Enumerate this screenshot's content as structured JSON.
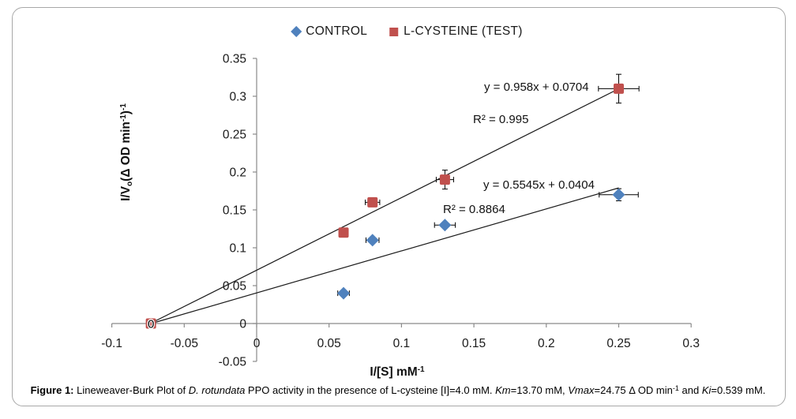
{
  "figure": {
    "border_color": "#a8a8a8",
    "background_color": "#ffffff",
    "axis_color": "#8a8a8a",
    "text_color": "#1a1a1a"
  },
  "chart_data": {
    "type": "scatter",
    "title": "",
    "xlabel": "I/[S] mM-1",
    "ylabel": "I/Vo(Δ OD min-1)-1",
    "xlabel_segments": [
      {
        "t": "I/[S] mM"
      },
      {
        "t": "-1",
        "sup": true
      }
    ],
    "ylabel_segments": [
      {
        "t": "I/V"
      },
      {
        "t": "o",
        "sub": true
      },
      {
        "t": "(Δ OD min"
      },
      {
        "t": "-1",
        "sup": true
      },
      {
        "t": ")"
      },
      {
        "t": "-1",
        "sup": true
      }
    ],
    "xlim": [
      -0.1,
      0.3
    ],
    "ylim": [
      -0.05,
      0.35
    ],
    "grid": false,
    "legend_position": "top-center",
    "x_ticks": [
      {
        "value": -0.1,
        "label": "-0.1"
      },
      {
        "value": -0.05,
        "label": "-0.05"
      },
      {
        "value": 0,
        "label": "0"
      },
      {
        "value": 0.05,
        "label": "0.05"
      },
      {
        "value": 0.1,
        "label": "0.1"
      },
      {
        "value": 0.15,
        "label": "0.15"
      },
      {
        "value": 0.2,
        "label": "0.2"
      },
      {
        "value": 0.25,
        "label": "0.25"
      },
      {
        "value": 0.3,
        "label": "0.3"
      }
    ],
    "y_ticks": [
      {
        "value": -0.05,
        "label": "-0.05"
      },
      {
        "value": 0,
        "label": "0"
      },
      {
        "value": 0.05,
        "label": "0.05"
      },
      {
        "value": 0.1,
        "label": "0.1"
      },
      {
        "value": 0.15,
        "label": "0.15"
      },
      {
        "value": 0.2,
        "label": "0.2"
      },
      {
        "value": 0.25,
        "label": "0.25"
      },
      {
        "value": 0.3,
        "label": "0.3"
      },
      {
        "value": 0.35,
        "label": "0.35"
      }
    ],
    "series": [
      {
        "name": "CONTROL",
        "marker": "diamond",
        "color": "#4F81BD",
        "points": [
          {
            "x": 0.06,
            "y": 0.04,
            "ex": 0.004,
            "ey": 0.004
          },
          {
            "x": 0.08,
            "y": 0.11,
            "ex": 0.0045,
            "ey": 0
          },
          {
            "x": 0.13,
            "y": 0.13,
            "ex": 0.0072,
            "ey": 0
          },
          {
            "x": 0.25,
            "y": 0.17,
            "ex": 0.0135,
            "ey": 0.008
          }
        ],
        "trendline": {
          "slope": 0.5545,
          "intercept": 0.0404,
          "x_start": -0.07286,
          "x_end": 0.25
        },
        "equation_label": "y = 0.5545x + 0.0404",
        "r2_label": "R² = 0.8864"
      },
      {
        "name": "L-CYSTEINE (TEST)",
        "marker": "square",
        "color": "#C0504D",
        "points": [
          {
            "x": -0.073,
            "y": 0,
            "ex": 0,
            "ey": 0,
            "label": "0"
          },
          {
            "x": 0.06,
            "y": 0.12,
            "ex": 0,
            "ey": 0
          },
          {
            "x": 0.08,
            "y": 0.16,
            "ex": 0.005,
            "ey": 0
          },
          {
            "x": 0.13,
            "y": 0.19,
            "ex": 0.006,
            "ey": 0.0125
          },
          {
            "x": 0.25,
            "y": 0.31,
            "ex": 0.014,
            "ey": 0.019
          }
        ],
        "trendline": {
          "slope": 0.958,
          "intercept": 0.0704,
          "x_start": -0.07349,
          "x_end": 0.25
        },
        "equation_label": "y = 0.958x + 0.0704",
        "r2_label": "R² = 0.995"
      }
    ]
  },
  "caption": {
    "segments": [
      {
        "t": "Figure 1:",
        "b": true
      },
      {
        "t": " Lineweaver-Burk Plot of "
      },
      {
        "t": "D. rotundata",
        "i": true
      },
      {
        "t": " PPO activity in the presence of L-cysteine [I]=4.0 mM. "
      },
      {
        "t": "Km",
        "i": true
      },
      {
        "t": "=13.70 mM, "
      },
      {
        "t": "Vmax",
        "i": true
      },
      {
        "t": "=24.75 Δ OD min"
      },
      {
        "t": "-1",
        "sup": true
      },
      {
        "t": " and "
      },
      {
        "t": "Ki",
        "i": true
      },
      {
        "t": "=0.539 mM."
      }
    ]
  }
}
